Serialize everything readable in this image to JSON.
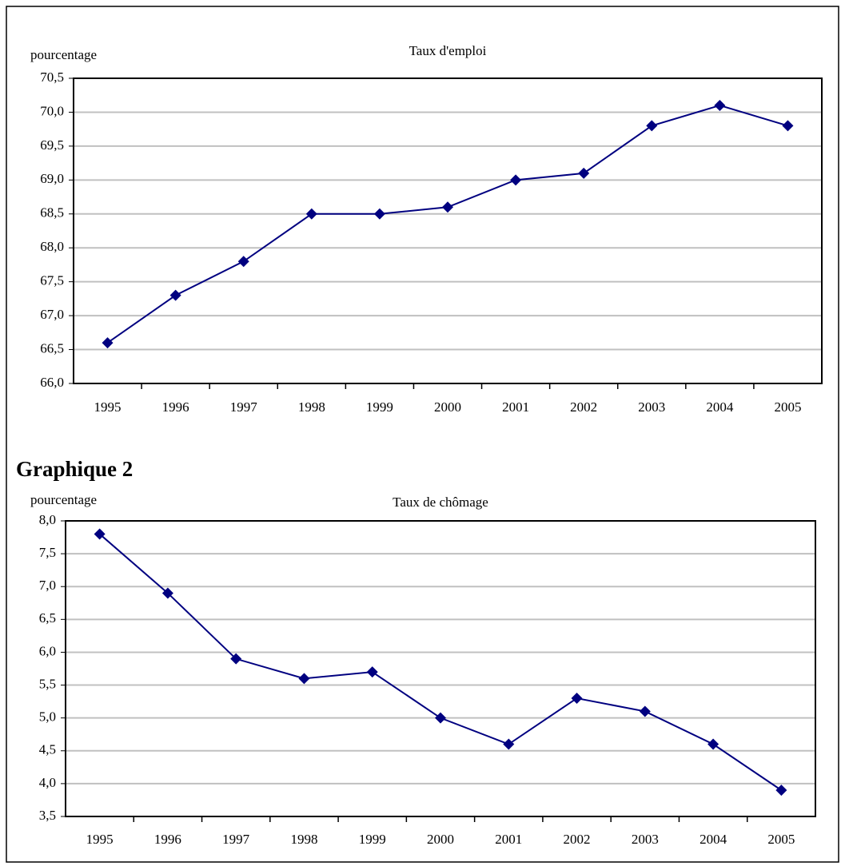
{
  "chart_data": [
    {
      "type": "line",
      "title": "Taux d'emploi",
      "y_label": "pourcentage",
      "categories": [
        "1995",
        "1996",
        "1997",
        "1998",
        "1999",
        "2000",
        "2001",
        "2002",
        "2003",
        "2004",
        "2005"
      ],
      "values": [
        66.6,
        67.3,
        67.8,
        68.5,
        68.5,
        68.6,
        69.0,
        69.1,
        69.8,
        70.1,
        69.8
      ],
      "color": "#000080",
      "ylim": [
        66,
        70.5
      ],
      "yticks": [
        {
          "value": 66,
          "label": "66,0"
        },
        {
          "value": 66.5,
          "label": "66,5"
        },
        {
          "value": 67,
          "label": "67,0"
        },
        {
          "value": 67.5,
          "label": "67,5"
        },
        {
          "value": 68,
          "label": "68,0"
        },
        {
          "value": 68.5,
          "label": "68,5"
        },
        {
          "value": 69,
          "label": "69,0"
        },
        {
          "value": 69.5,
          "label": "69,5"
        },
        {
          "value": 70,
          "label": "70,0"
        },
        {
          "value": 70.5,
          "label": "70,5"
        }
      ],
      "grid": true
    },
    {
      "type": "line",
      "heading": "Graphique 2",
      "title": "Taux de chômage",
      "y_label": "pourcentage",
      "categories": [
        "1995",
        "1996",
        "1997",
        "1998",
        "1999",
        "2000",
        "2001",
        "2002",
        "2003",
        "2004",
        "2005"
      ],
      "values": [
        7.8,
        6.9,
        5.9,
        5.6,
        5.7,
        5.0,
        4.6,
        5.3,
        5.1,
        4.6,
        3.9
      ],
      "color": "#000080",
      "ylim": [
        3.5,
        8
      ],
      "yticks": [
        {
          "value": 3.5,
          "label": "3,5"
        },
        {
          "value": 4,
          "label": "4,0"
        },
        {
          "value": 4.5,
          "label": "4,5"
        },
        {
          "value": 5,
          "label": "5,0"
        },
        {
          "value": 5.5,
          "label": "5,5"
        },
        {
          "value": 6,
          "label": "6,0"
        },
        {
          "value": 6.5,
          "label": "6,5"
        },
        {
          "value": 7,
          "label": "7,0"
        },
        {
          "value": 7.5,
          "label": "7,5"
        },
        {
          "value": 8,
          "label": "8,0"
        }
      ],
      "grid": true
    }
  ]
}
